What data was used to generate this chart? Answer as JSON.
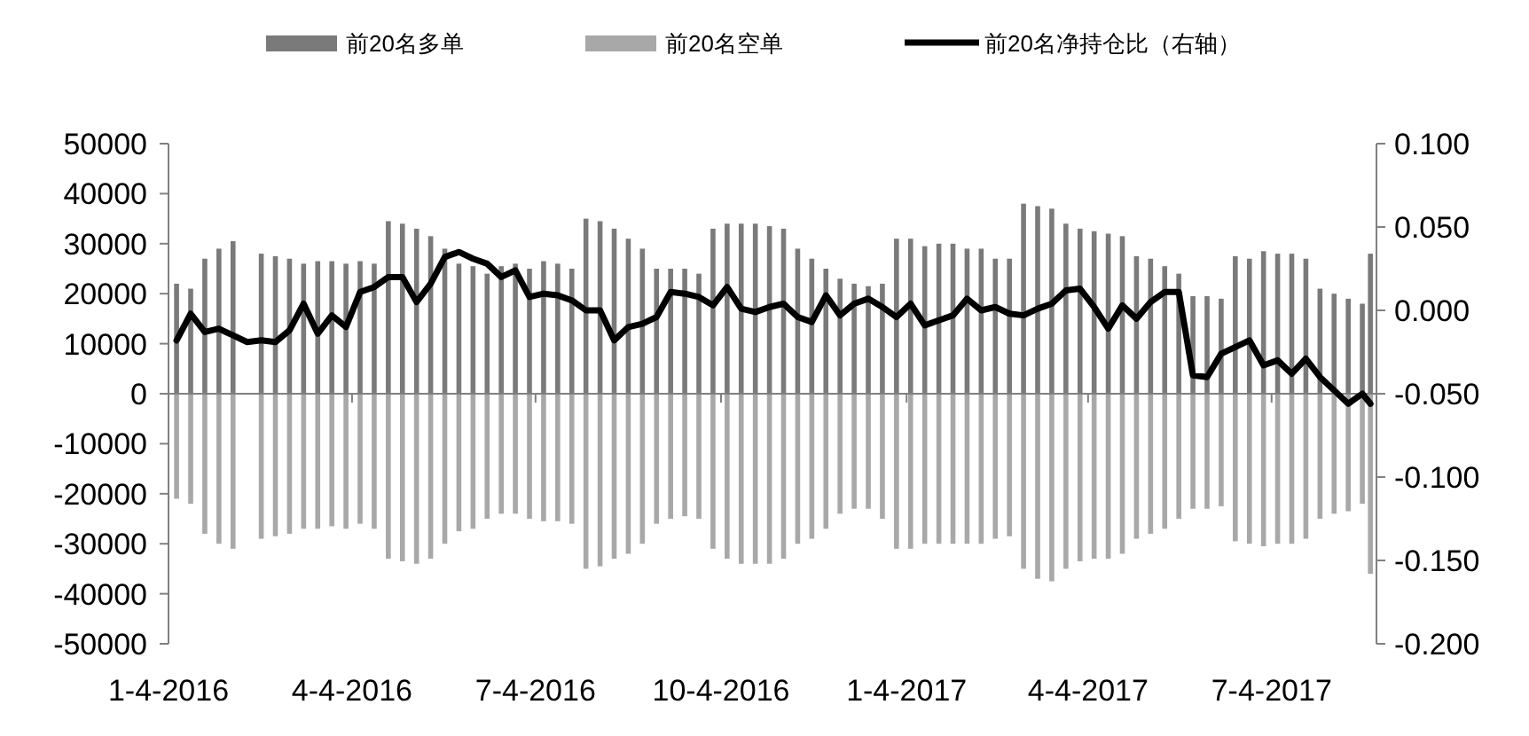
{
  "chart_data": {
    "type": "bar",
    "stacked": true,
    "legend": "top",
    "x": [
      "2016-01-08",
      "2016-01-15",
      "2016-01-22",
      "2016-01-29",
      "2016-02-05",
      "2016-02-12",
      "2016-02-19",
      "2016-02-26",
      "2016-03-04",
      "2016-03-11",
      "2016-03-18",
      "2016-03-25",
      "2016-04-01",
      "2016-04-08",
      "2016-04-15",
      "2016-04-22",
      "2016-04-29",
      "2016-05-06",
      "2016-05-13",
      "2016-05-20",
      "2016-05-27",
      "2016-06-03",
      "2016-06-10",
      "2016-06-17",
      "2016-06-24",
      "2016-07-01",
      "2016-07-08",
      "2016-07-15",
      "2016-07-22",
      "2016-07-29",
      "2016-08-05",
      "2016-08-12",
      "2016-08-19",
      "2016-08-26",
      "2016-09-02",
      "2016-09-09",
      "2016-09-16",
      "2016-09-23",
      "2016-09-30",
      "2016-10-07",
      "2016-10-14",
      "2016-10-21",
      "2016-10-28",
      "2016-11-04",
      "2016-11-11",
      "2016-11-18",
      "2016-11-25",
      "2016-12-02",
      "2016-12-09",
      "2016-12-16",
      "2016-12-23",
      "2016-12-30",
      "2017-01-06",
      "2017-01-13",
      "2017-01-20",
      "2017-01-27",
      "2017-02-03",
      "2017-02-10",
      "2017-02-17",
      "2017-02-24",
      "2017-03-03",
      "2017-03-10",
      "2017-03-17",
      "2017-03-24",
      "2017-03-31",
      "2017-04-07",
      "2017-04-14",
      "2017-04-21",
      "2017-04-28",
      "2017-05-05",
      "2017-05-12",
      "2017-05-19",
      "2017-05-26",
      "2017-06-02",
      "2017-06-09",
      "2017-06-16",
      "2017-06-23",
      "2017-06-30",
      "2017-07-07",
      "2017-07-14",
      "2017-07-21",
      "2017-07-28",
      "2017-08-04",
      "2017-08-11",
      "2017-08-18",
      "2017-08-22"
    ],
    "series": [
      {
        "name": "前20名多单",
        "color": "#7a7a7a",
        "values": [
          22000,
          21000,
          27000,
          29000,
          30500,
          null,
          28000,
          27500,
          27000,
          26000,
          26500,
          26500,
          26000,
          26500,
          26000,
          34500,
          34000,
          33000,
          31500,
          29000,
          26000,
          25500,
          24000,
          25500,
          26000,
          25000,
          26500,
          26000,
          25000,
          35000,
          34500,
          33000,
          31000,
          29000,
          25000,
          25000,
          25000,
          24000,
          33000,
          34000,
          34000,
          34000,
          33500,
          33000,
          29000,
          27000,
          25000,
          23000,
          22000,
          21500,
          22000,
          31000,
          31000,
          29500,
          30000,
          30000,
          29000,
          29000,
          27000,
          27000,
          38000,
          37500,
          37000,
          34000,
          33000,
          32500,
          32000,
          31500,
          27500,
          27000,
          25500,
          24000,
          19500,
          19500,
          19000,
          27500,
          27000,
          28500,
          28000,
          28000,
          27000,
          21000,
          20000,
          19000,
          18000,
          28000
        ]
      },
      {
        "name": "前20名空单",
        "color": "#a8a8a8",
        "values": [
          -21000,
          -22000,
          -28000,
          -30000,
          -31000,
          null,
          -29000,
          -28500,
          -28000,
          -27000,
          -27000,
          -26500,
          -27000,
          -26000,
          -27000,
          -33000,
          -33500,
          -34000,
          -33000,
          -30000,
          -27500,
          -27000,
          -25000,
          -24000,
          -24000,
          -25000,
          -25500,
          -25500,
          -26000,
          -35000,
          -34500,
          -33000,
          -32000,
          -30000,
          -26000,
          -25000,
          -24500,
          -25000,
          -31000,
          -33000,
          -34000,
          -34000,
          -34000,
          -33000,
          -30000,
          -29000,
          -27000,
          -24000,
          -23000,
          -23000,
          -25000,
          -31000,
          -31000,
          -30000,
          -30000,
          -30000,
          -30000,
          -30000,
          -29000,
          -28500,
          -35000,
          -37000,
          -37500,
          -35000,
          -33500,
          -33000,
          -33000,
          -32000,
          -29000,
          -28000,
          -27000,
          -25000,
          -23000,
          -23000,
          -22500,
          -29500,
          -30000,
          -30500,
          -30000,
          -30000,
          -29000,
          -25000,
          -24000,
          -23500,
          -22000,
          -36000
        ]
      },
      {
        "name": "前20名净持仓比（右轴）",
        "type": "line",
        "axis": "y2",
        "color": "#000000",
        "values": [
          -0.018,
          -0.002,
          -0.013,
          -0.011,
          -0.015,
          -0.019,
          -0.018,
          -0.019,
          -0.012,
          0.004,
          -0.014,
          -0.003,
          -0.01,
          0.011,
          0.014,
          0.02,
          0.02,
          0.005,
          0.016,
          0.032,
          0.035,
          0.031,
          0.028,
          0.02,
          0.024,
          0.008,
          0.01,
          0.009,
          0.006,
          0.0,
          0.0,
          -0.018,
          -0.01,
          -0.008,
          -0.004,
          0.011,
          0.01,
          0.008,
          0.003,
          0.014,
          0.001,
          -0.001,
          0.002,
          0.004,
          -0.004,
          -0.007,
          0.009,
          -0.003,
          0.004,
          0.007,
          0.002,
          -0.004,
          0.004,
          -0.009,
          -0.006,
          -0.003,
          0.007,
          0.0,
          0.002,
          -0.002,
          -0.003,
          0.001,
          0.004,
          0.012,
          0.013,
          0.002,
          -0.011,
          0.003,
          -0.005,
          0.005,
          0.011,
          0.011,
          -0.039,
          -0.04,
          -0.026,
          -0.022,
          -0.018,
          -0.033,
          -0.03,
          -0.038,
          -0.029,
          -0.04,
          -0.048,
          -0.056,
          -0.05,
          -0.056
        ]
      }
    ],
    "xlim": [
      "2016-01-04",
      "2017-08-25"
    ],
    "xticks": [
      {
        "value": "2016-01-04",
        "label": "1-4-2016"
      },
      {
        "value": "2016-04-04",
        "label": "4-4-2016"
      },
      {
        "value": "2016-07-04",
        "label": "7-4-2016"
      },
      {
        "value": "2016-10-04",
        "label": "10-4-2016"
      },
      {
        "value": "2017-01-04",
        "label": "1-4-2017"
      },
      {
        "value": "2017-04-04",
        "label": "4-4-2017"
      },
      {
        "value": "2017-07-04",
        "label": "7-4-2017"
      }
    ],
    "ylim": [
      -50000,
      50000
    ],
    "yticks": [
      -50000,
      -40000,
      -30000,
      -20000,
      -10000,
      0,
      10000,
      20000,
      30000,
      40000,
      50000
    ],
    "y2lim": [
      -0.2,
      0.1
    ],
    "y2ticks": [
      {
        "value": -0.2,
        "label": "-0.200"
      },
      {
        "value": -0.15,
        "label": "-0.150"
      },
      {
        "value": -0.1,
        "label": "-0.100"
      },
      {
        "value": -0.05,
        "label": "-0.050"
      },
      {
        "value": 0,
        "label": "0.000"
      },
      {
        "value": 0.05,
        "label": "0.050"
      },
      {
        "value": 0.1,
        "label": "0.100"
      }
    ]
  }
}
